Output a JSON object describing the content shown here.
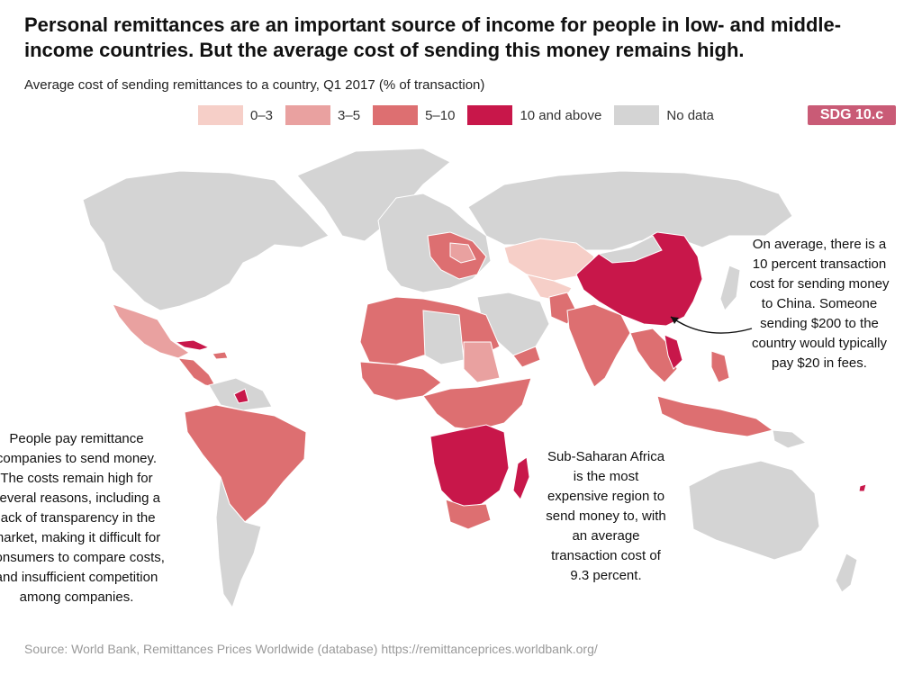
{
  "header": {
    "title": "Personal remittances are an important source of income for people in low- and middle-income countries. But the average cost of sending this money remains high.",
    "subtitle": "Average cost of sending remittances to a country, Q1 2017 (% of transaction)",
    "badge": "SDG 10.c"
  },
  "legend": [
    {
      "label": "0–3",
      "color": "#f6cfc8"
    },
    {
      "label": "3–5",
      "color": "#e9a1a0"
    },
    {
      "label": "5–10",
      "color": "#dd6f71"
    },
    {
      "label": "10 and above",
      "color": "#c8174a"
    },
    {
      "label": "No data",
      "color": "#d4d4d4"
    }
  ],
  "colors": {
    "no_data": "#d4d4d4",
    "band_0_3": "#f6cfc8",
    "band_3_5": "#e9a1a0",
    "band_5_10": "#dd6f71",
    "band_10_plus": "#c8174a",
    "badge": "#c95b76"
  },
  "annotations": {
    "china": "On average, there is a 10 percent transaction cost for sending money to China. Someone sending $200 to the country would typically pay $20 in fees.",
    "africa": "Sub-Saharan Africa is the most expensive region to send money to, with an average transaction cost of 9.3 percent.",
    "left": "People pay remittance companies to send money. The costs remain high for several reasons, including a lack of transparency in the market, making it difficult for consumers to compare costs, and insufficient competition among companies."
  },
  "source": "Source: World Bank, Remittances Prices Worldwide (database) https://remittanceprices.worldbank.org/"
}
